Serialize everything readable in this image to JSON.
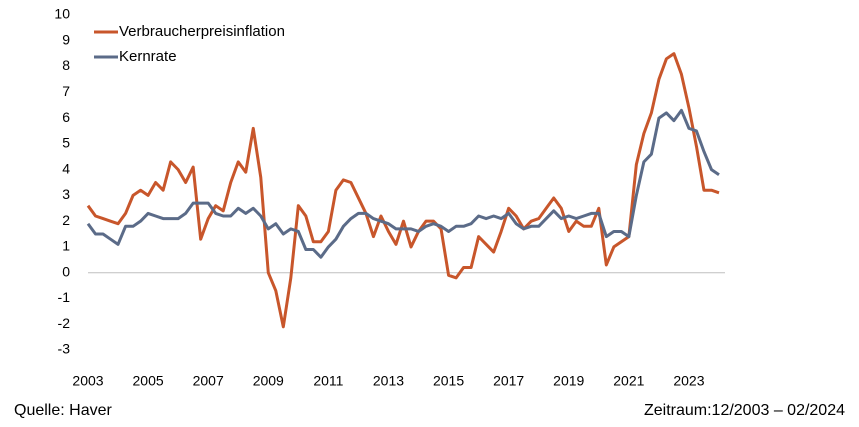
{
  "chart_data": {
    "type": "line",
    "x": [
      2003.0,
      2003.25,
      2003.5,
      2003.75,
      2004.0,
      2004.25,
      2004.5,
      2004.75,
      2005.0,
      2005.25,
      2005.5,
      2005.75,
      2006.0,
      2006.25,
      2006.5,
      2006.75,
      2007.0,
      2007.25,
      2007.5,
      2007.75,
      2008.0,
      2008.25,
      2008.5,
      2008.75,
      2009.0,
      2009.25,
      2009.5,
      2009.75,
      2010.0,
      2010.25,
      2010.5,
      2010.75,
      2011.0,
      2011.25,
      2011.5,
      2011.75,
      2012.0,
      2012.25,
      2012.5,
      2012.75,
      2013.0,
      2013.25,
      2013.5,
      2013.75,
      2014.0,
      2014.25,
      2014.5,
      2014.75,
      2015.0,
      2015.25,
      2015.5,
      2015.75,
      2016.0,
      2016.25,
      2016.5,
      2016.75,
      2017.0,
      2017.25,
      2017.5,
      2017.75,
      2018.0,
      2018.25,
      2018.5,
      2018.75,
      2019.0,
      2019.25,
      2019.5,
      2019.75,
      2020.0,
      2020.25,
      2020.5,
      2020.75,
      2021.0,
      2021.25,
      2021.5,
      2021.75,
      2022.0,
      2022.25,
      2022.5,
      2022.75,
      2023.0,
      2023.25,
      2023.5,
      2023.75,
      2024.0
    ],
    "series": [
      {
        "name": "Verbraucherpreisinflation",
        "color": "#c8562b",
        "values": [
          2.6,
          2.2,
          2.1,
          2.0,
          1.9,
          2.3,
          3.0,
          3.2,
          3.0,
          3.5,
          3.2,
          4.3,
          4.0,
          3.5,
          4.1,
          1.3,
          2.1,
          2.6,
          2.4,
          3.5,
          4.3,
          3.9,
          5.6,
          3.7,
          0.0,
          -0.7,
          -2.1,
          -0.2,
          2.6,
          2.2,
          1.2,
          1.2,
          1.6,
          3.2,
          3.6,
          3.5,
          2.9,
          2.3,
          1.4,
          2.2,
          1.6,
          1.1,
          2.0,
          1.0,
          1.6,
          2.0,
          2.0,
          1.7,
          -0.1,
          -0.2,
          0.2,
          0.2,
          1.4,
          1.1,
          0.8,
          1.6,
          2.5,
          2.2,
          1.7,
          2.0,
          2.1,
          2.5,
          2.9,
          2.5,
          1.6,
          2.0,
          1.8,
          1.8,
          2.5,
          0.3,
          1.0,
          1.2,
          1.4,
          4.2,
          5.4,
          6.2,
          7.5,
          8.3,
          8.5,
          7.7,
          6.4,
          4.9,
          3.2,
          3.2,
          3.1
        ]
      },
      {
        "name": "Kernrate",
        "color": "#5b6b88",
        "values": [
          1.9,
          1.5,
          1.5,
          1.3,
          1.1,
          1.8,
          1.8,
          2.0,
          2.3,
          2.2,
          2.1,
          2.1,
          2.1,
          2.3,
          2.7,
          2.7,
          2.7,
          2.3,
          2.2,
          2.2,
          2.5,
          2.3,
          2.5,
          2.2,
          1.7,
          1.9,
          1.5,
          1.7,
          1.6,
          0.9,
          0.9,
          0.6,
          1.0,
          1.3,
          1.8,
          2.1,
          2.3,
          2.3,
          2.1,
          2.0,
          1.9,
          1.7,
          1.7,
          1.7,
          1.6,
          1.8,
          1.9,
          1.8,
          1.6,
          1.8,
          1.8,
          1.9,
          2.2,
          2.1,
          2.2,
          2.1,
          2.3,
          1.9,
          1.7,
          1.8,
          1.8,
          2.1,
          2.4,
          2.1,
          2.2,
          2.1,
          2.2,
          2.3,
          2.3,
          1.4,
          1.6,
          1.6,
          1.4,
          3.0,
          4.3,
          4.6,
          6.0,
          6.2,
          5.9,
          6.3,
          5.6,
          5.5,
          4.7,
          4.0,
          3.8
        ]
      }
    ],
    "xlim": [
      2003,
      2024.2
    ],
    "xticks": [
      2003,
      2005,
      2007,
      2009,
      2011,
      2013,
      2015,
      2017,
      2019,
      2021,
      2023
    ],
    "ylim": [
      -3,
      10
    ],
    "yticks": [
      -3,
      -2,
      -1,
      0,
      1,
      2,
      3,
      4,
      5,
      6,
      7,
      8,
      9,
      10
    ],
    "legend": "upper left",
    "source": "Quelle: Haver",
    "period": "Zeitraum:12/2003 – 02/2024"
  }
}
